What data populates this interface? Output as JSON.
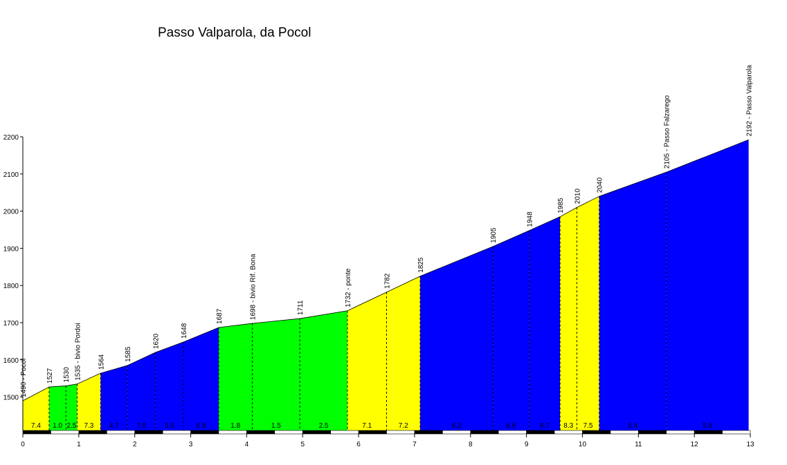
{
  "chart_data": {
    "type": "area",
    "title": "Passo Valparola, da Pocol",
    "xlabel": "",
    "ylabel": "",
    "xlim": [
      0,
      13
    ],
    "ylim": [
      1410,
      2200
    ],
    "x_ticks": [
      0,
      1,
      2,
      3,
      4,
      5,
      6,
      7,
      8,
      9,
      10,
      11,
      12,
      13
    ],
    "y_ticks": [
      1500,
      1600,
      1700,
      1800,
      1900,
      2000,
      2100,
      2200
    ],
    "colors": {
      "yellow": "#ffff00",
      "green": "#00ff00",
      "blue": "#0000ff"
    },
    "points": [
      {
        "x": 0.0,
        "y": 1490,
        "label": "1490 - Pocol"
      },
      {
        "x": 0.47,
        "y": 1527,
        "label": "1527"
      },
      {
        "x": 0.77,
        "y": 1530,
        "label": "1530"
      },
      {
        "x": 0.97,
        "y": 1535,
        "label": "1535 - bivio Pordoi"
      },
      {
        "x": 1.39,
        "y": 1564,
        "label": "1564"
      },
      {
        "x": 1.87,
        "y": 1585,
        "label": "1585"
      },
      {
        "x": 2.37,
        "y": 1620,
        "label": "1620"
      },
      {
        "x": 2.87,
        "y": 1648,
        "label": "1648"
      },
      {
        "x": 3.5,
        "y": 1687,
        "label": "1687"
      },
      {
        "x": 4.1,
        "y": 1698,
        "label": "1698 - bivio Rif. Bona"
      },
      {
        "x": 4.95,
        "y": 1711,
        "label": "1711"
      },
      {
        "x": 5.8,
        "y": 1732,
        "label": "1732 - ponte"
      },
      {
        "x": 6.5,
        "y": 1782,
        "label": "1782"
      },
      {
        "x": 7.1,
        "y": 1825,
        "label": "1825"
      },
      {
        "x": 8.4,
        "y": 1905,
        "label": "1905"
      },
      {
        "x": 9.05,
        "y": 1948,
        "label": "1948"
      },
      {
        "x": 9.6,
        "y": 1985,
        "label": "1985"
      },
      {
        "x": 9.9,
        "y": 2010,
        "label": "2010"
      },
      {
        "x": 10.3,
        "y": 2040,
        "label": "2040"
      },
      {
        "x": 11.5,
        "y": 2105,
        "label": "2105 - Passo Falzarego"
      },
      {
        "x": 12.97,
        "y": 2192,
        "label": "2192 - Passo Valparola"
      }
    ],
    "segments": [
      {
        "gradient": "7.4",
        "color": "yellow"
      },
      {
        "gradient": "1.0",
        "color": "green"
      },
      {
        "gradient": "2.5",
        "color": "green"
      },
      {
        "gradient": "7.3",
        "color": "yellow"
      },
      {
        "gradient": "4.7",
        "color": "blue"
      },
      {
        "gradient": "7.0",
        "color": "blue"
      },
      {
        "gradient": "5.6",
        "color": "blue"
      },
      {
        "gradient": "6.5",
        "color": "blue"
      },
      {
        "gradient": "1.8",
        "color": "green"
      },
      {
        "gradient": "1.5",
        "color": "green"
      },
      {
        "gradient": "2.5",
        "color": "green"
      },
      {
        "gradient": "7.1",
        "color": "yellow"
      },
      {
        "gradient": "7.2",
        "color": "yellow"
      },
      {
        "gradient": "6.2",
        "color": "blue"
      },
      {
        "gradient": "6.6",
        "color": "blue"
      },
      {
        "gradient": "6.7",
        "color": "blue"
      },
      {
        "gradient": "8.3",
        "color": "yellow"
      },
      {
        "gradient": "7.5",
        "color": "yellow"
      },
      {
        "gradient": "5.4",
        "color": "blue"
      },
      {
        "gradient": "5.9",
        "color": "blue"
      }
    ]
  }
}
